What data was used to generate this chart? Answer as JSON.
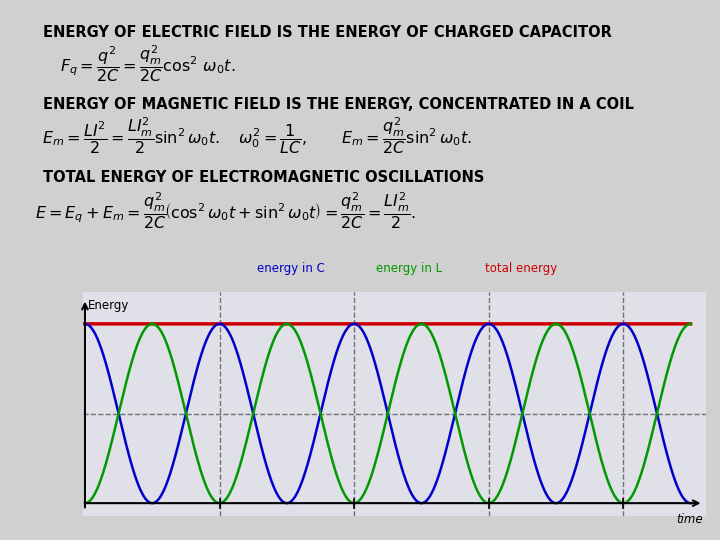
{
  "bg_color": "#d0d0d0",
  "text_color": "#000000",
  "title1": "ENERGY OF ELECTRIC FIELD IS THE ENERGY OF CHARGED CAPACITOR",
  "title2": "ENERGY OF MAGNETIC FIELD IS THE ENERGY, CONCENTRATED IN A COIL",
  "title3": "TOTAL ENERGY OF ELECTROMAGNETIC OSCILLATIONS",
  "plot_bg": "#dcdcdc",
  "plot_bg2": "#e0e0e8",
  "blue_color": "#0000cc",
  "green_color": "#009900",
  "red_color": "#cc0000",
  "dashed_color": "#555555",
  "legend_energy": "Energy",
  "legend_c": "energy in C",
  "legend_l": "energy in L",
  "legend_total": "total energy",
  "n_cycles": 4.5,
  "amplitude": 1.0,
  "label_fontsize": 8.5,
  "title_fontsize": 10.5,
  "formula_fontsize": 11.5
}
